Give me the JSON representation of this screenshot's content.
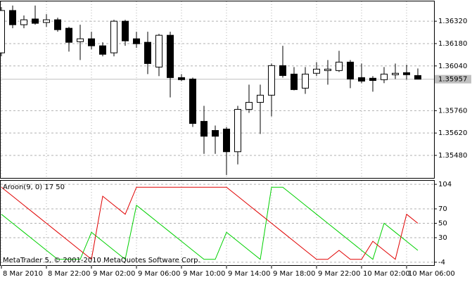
{
  "chart_data": [
    {
      "type": "candlestick",
      "categories": [
        "8 Mar 2010",
        null,
        null,
        null,
        "8 Mar 22:00",
        null,
        null,
        null,
        "9 Mar 02:00",
        null,
        null,
        null,
        "9 Mar 06:00",
        null,
        null,
        null,
        "9 Mar 10:00",
        null,
        null,
        null,
        "9 Mar 14:00",
        null,
        null,
        null,
        "9 Mar 18:00",
        null,
        null,
        null,
        "9 Mar 22:00",
        null,
        null,
        null,
        "10 Mar 02:00",
        null,
        null,
        null,
        "10 Mar 06:00",
        null
      ],
      "open": [
        1.36122,
        1.36387,
        1.36298,
        1.36334,
        1.36312,
        1.36329,
        1.36276,
        1.36192,
        1.3621,
        1.36166,
        1.36122,
        1.3632,
        1.3621,
        1.36188,
        1.36033,
        1.36232,
        1.35967,
        1.35958,
        1.35693,
        1.35636,
        1.35645,
        1.35503,
        1.35768,
        1.35812,
        1.35857,
        1.36042,
        1.35989,
        1.35901,
        1.35994,
        1.36011,
        1.36011,
        1.36064,
        1.35967,
        1.35963,
        1.35954,
        1.35985,
        1.35998,
        1.3598
      ],
      "high": [
        1.36409,
        1.36418,
        1.36356,
        1.36418,
        1.36364,
        1.36342,
        1.36285,
        1.36298,
        1.36254,
        1.36188,
        1.36329,
        1.36329,
        1.36254,
        1.36254,
        1.36241,
        1.36254,
        1.35989,
        1.35967,
        1.3579,
        1.35667,
        1.35658,
        1.3579,
        1.35923,
        1.35923,
        1.36055,
        1.36166,
        1.36033,
        1.36033,
        1.36064,
        1.36077,
        1.36135,
        1.36077,
        1.36055,
        1.35976,
        1.36033,
        1.36055,
        1.36047,
        1.36024
      ],
      "low": [
        1.361,
        1.36276,
        1.36276,
        1.36298,
        1.36285,
        1.36254,
        1.3613,
        1.36077,
        1.36144,
        1.361,
        1.361,
        1.36166,
        1.36153,
        1.35989,
        1.35976,
        1.35843,
        1.35945,
        1.35658,
        1.3549,
        1.3549,
        1.35357,
        1.35424,
        1.35746,
        1.35614,
        1.35724,
        1.35967,
        1.35887,
        1.35865,
        1.35976,
        1.35923,
        1.36002,
        1.35901,
        1.35932,
        1.35879,
        1.35932,
        1.35958,
        1.35954,
        1.35957
      ],
      "close": [
        1.36387,
        1.36298,
        1.36329,
        1.36307,
        1.36329,
        1.36267,
        1.36188,
        1.3621,
        1.36166,
        1.36113,
        1.3632,
        1.36197,
        1.36179,
        1.36055,
        1.36232,
        1.35967,
        1.35954,
        1.3568,
        1.356,
        1.356,
        1.35503,
        1.35768,
        1.35812,
        1.35857,
        1.36042,
        1.3598,
        1.35892,
        1.35989,
        1.3602,
        1.3602,
        1.36064,
        1.35958,
        1.35945,
        1.35949,
        1.35989,
        1.35994,
        1.35985,
        1.35957
      ],
      "ylim": [
        1.35339,
        1.36444
      ],
      "yticks": [
        {
          "value": 1.3632,
          "label": "1.36320"
        },
        {
          "value": 1.3618,
          "label": "1.36180"
        },
        {
          "value": 1.3604,
          "label": "1.36040"
        },
        {
          "value": 1.3576,
          "label": "1.35760"
        },
        {
          "value": 1.3562,
          "label": "1.35620"
        },
        {
          "value": 1.3548,
          "label": "1.35480"
        }
      ],
      "current_price": 1.35957,
      "grid": true
    },
    {
      "type": "line",
      "title": "Aroon(9, 0) 17 50",
      "watermark": "MetaTrader 5, © 2001-2010 MetaQuotes Software Corp.",
      "series": [
        {
          "color": "#00d000",
          "values": [
            62.5,
            50,
            37.5,
            25,
            12.5,
            0,
            0,
            0,
            37.5,
            25,
            12.5,
            0,
            75,
            62.5,
            50,
            37.5,
            25,
            12.5,
            0,
            0,
            37.5,
            25,
            12.5,
            0,
            100,
            100,
            87.5,
            75,
            62.5,
            50,
            37.5,
            25,
            12.5,
            0,
            50,
            37.5,
            25,
            12.5
          ]
        },
        {
          "color": "#e00000",
          "values": [
            100,
            87.5,
            75,
            62.5,
            50,
            37.5,
            25,
            12.5,
            0,
            87.5,
            75,
            62.5,
            100,
            100,
            100,
            100,
            100,
            100,
            100,
            100,
            100,
            87.5,
            75,
            62.5,
            50,
            37.5,
            25,
            12.5,
            0,
            0,
            12.5,
            0,
            0,
            25,
            12.5,
            0,
            62.5,
            50
          ]
        }
      ],
      "ylim": [
        -9,
        109
      ],
      "yticks": [
        104,
        70,
        50,
        30,
        -4
      ],
      "grid": true
    }
  ]
}
